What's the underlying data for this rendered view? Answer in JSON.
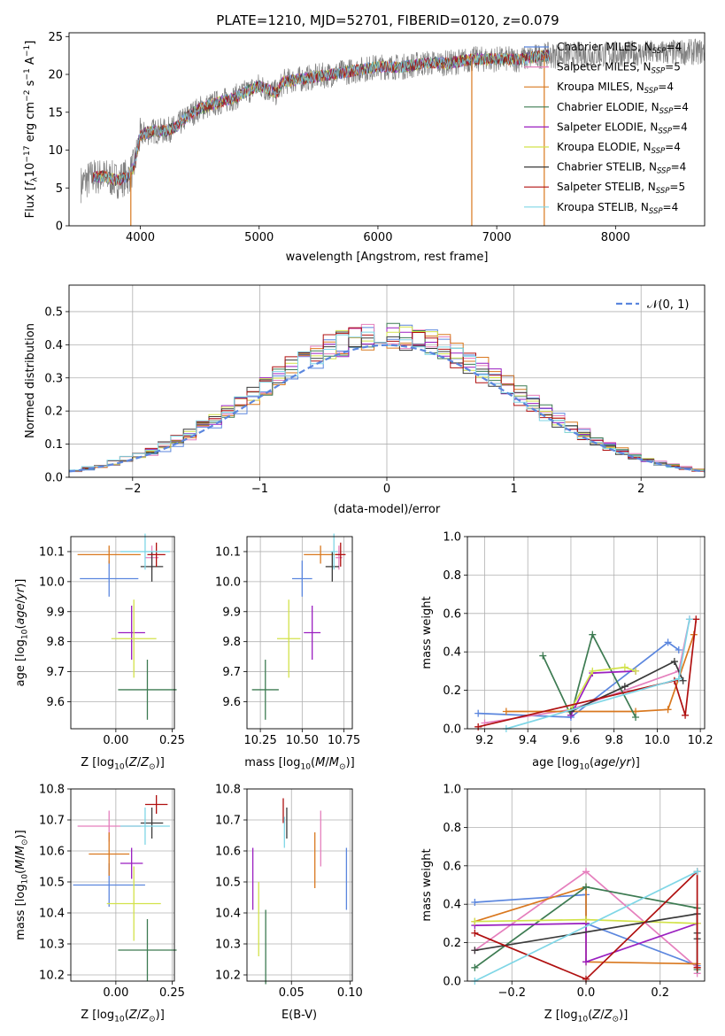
{
  "colors": {
    "chabrier_miles": "#5b86de",
    "salpeter_miles": "#e57fbd",
    "kroupa_miles": "#d9781f",
    "chabrier_elodie": "#3d7b52",
    "salpeter_elodie": "#9a1fc0",
    "kroupa_elodie": "#d2e24a",
    "chabrier_stelib": "#3a3a3a",
    "salpeter_stelib": "#b01010",
    "kroupa_stelib": "#7fd6e6",
    "gauss": "#5b86de",
    "grid": "#b0b0b0"
  },
  "chart_data": [
    {
      "id": "spectrum",
      "type": "line",
      "title": "PLATE=1210, MJD=52701, FIBERID=0120, z=0.079",
      "xlabel": "wavelength [Angstrom, rest frame]",
      "ylabel": "Flux [f_λ10^-17 erg cm^-2 s^-1 A^-1]",
      "xlim": [
        3400,
        8750
      ],
      "ylim": [
        0,
        25.5
      ],
      "xticks": [
        4000,
        5000,
        6000,
        7000,
        8000
      ],
      "yticks": [
        0,
        5,
        10,
        15,
        20,
        25
      ],
      "grid": false,
      "legend_position": "right",
      "legend": [
        {
          "name": "Chabrier MILES",
          "nssp": "4"
        },
        {
          "name": "Salpeter MILES",
          "nssp": "5"
        },
        {
          "name": "Kroupa MILES",
          "nssp": "4"
        },
        {
          "name": "Chabrier ELODIE",
          "nssp": "4"
        },
        {
          "name": "Salpeter ELODIE",
          "nssp": "4"
        },
        {
          "name": "Kroupa ELODIE",
          "nssp": "4"
        },
        {
          "name": "Chabrier STELIB",
          "nssp": "4"
        },
        {
          "name": "Salpeter STELIB",
          "nssp": "5"
        },
        {
          "name": "Kroupa STELIB",
          "nssp": "4"
        }
      ],
      "continuum": {
        "wavelength": [
          3500,
          3600,
          3700,
          3800,
          3900,
          3950,
          4000,
          4100,
          4200,
          4300,
          4400,
          4500,
          4600,
          4800,
          5000,
          5150,
          5200,
          5400,
          5600,
          5800,
          6000,
          6200,
          6400,
          6600,
          6800,
          7000,
          7200,
          7400,
          7500
        ],
        "flux": [
          5.5,
          6.5,
          6.5,
          6.0,
          6.5,
          8.0,
          12.0,
          12.5,
          12.5,
          13.0,
          14.5,
          15.5,
          16.0,
          17.0,
          18.5,
          17.5,
          19.0,
          19.5,
          20.0,
          20.5,
          21.0,
          21.0,
          21.5,
          21.5,
          22.0,
          22.0,
          22.0,
          22.5,
          22.5
        ]
      },
      "data_range": [
        3500,
        8750
      ],
      "model_range": [
        3600,
        7450
      ],
      "dropouts": [
        3920,
        6790,
        7400
      ]
    },
    {
      "id": "residuals",
      "type": "histogram",
      "xlabel": "(data-model)/error",
      "ylabel": "Normed distribution",
      "xlim": [
        -2.5,
        2.5
      ],
      "ylim": [
        0,
        0.58
      ],
      "xticks": [
        -2,
        -1,
        0,
        1,
        2
      ],
      "yticks": [
        0.0,
        0.1,
        0.2,
        0.3,
        0.4,
        0.5
      ],
      "grid": true,
      "bin_width": 0.1,
      "legend_label": "N(0,1)",
      "legend_position": "top-right"
    },
    {
      "id": "age-vs-Z",
      "type": "scatter",
      "xlabel": "Z [log10(Z/Z⊙)]",
      "ylabel": "age [log10(age/yr)]",
      "xlim": [
        -0.2,
        0.26
      ],
      "ylim": [
        9.51,
        10.15
      ],
      "xticks": [
        0.0,
        0.25
      ],
      "xtick_labels": [
        "0.00",
        "0.25"
      ],
      "yticks": [
        9.6,
        9.7,
        9.8,
        9.9,
        10.0,
        10.1
      ],
      "points": [
        {
          "series": "Chabrier MILES",
          "x": -0.03,
          "xerr": 0.13,
          "y": 10.01,
          "yerr": 0.06
        },
        {
          "series": "Salpeter MILES",
          "x": 0.16,
          "xerr": 0.03,
          "y": 10.08,
          "yerr": 0.04
        },
        {
          "series": "Kroupa MILES",
          "x": -0.03,
          "xerr": 0.14,
          "y": 10.09,
          "yerr": 0.03
        },
        {
          "series": "Chabrier ELODIE",
          "x": 0.14,
          "xerr": 0.13,
          "y": 9.64,
          "yerr": 0.1
        },
        {
          "series": "Salpeter ELODIE",
          "x": 0.07,
          "xerr": 0.06,
          "y": 9.83,
          "yerr": 0.09
        },
        {
          "series": "Kroupa ELODIE",
          "x": 0.08,
          "xerr": 0.1,
          "y": 9.81,
          "yerr": 0.13
        },
        {
          "series": "Chabrier STELIB",
          "x": 0.16,
          "xerr": 0.05,
          "y": 10.05,
          "yerr": 0.05
        },
        {
          "series": "Salpeter STELIB",
          "x": 0.18,
          "xerr": 0.04,
          "y": 10.09,
          "yerr": 0.04
        },
        {
          "series": "Kroupa STELIB",
          "x": 0.13,
          "xerr": 0.11,
          "y": 10.1,
          "yerr": 0.06
        }
      ]
    },
    {
      "id": "age-vs-mass",
      "type": "scatter",
      "xlabel": "mass [log10(M/M⊙)]",
      "ylabel": "",
      "xlim": [
        10.17,
        10.8
      ],
      "ylim": [
        9.51,
        10.15
      ],
      "xticks": [
        10.25,
        10.5,
        10.75
      ],
      "xtick_labels": [
        "10.25",
        "10.50",
        "10.75"
      ],
      "yticks": [
        9.6,
        9.7,
        9.8,
        9.9,
        10.0,
        10.1
      ],
      "points": [
        {
          "series": "Chabrier MILES",
          "x": 10.5,
          "xerr": 0.06,
          "y": 10.01,
          "yerr": 0.06
        },
        {
          "series": "Salpeter MILES",
          "x": 10.72,
          "xerr": 0.02,
          "y": 10.08,
          "yerr": 0.04
        },
        {
          "series": "Kroupa MILES",
          "x": 10.61,
          "xerr": 0.1,
          "y": 10.09,
          "yerr": 0.03
        },
        {
          "series": "Chabrier ELODIE",
          "x": 10.28,
          "xerr": 0.08,
          "y": 9.64,
          "yerr": 0.1
        },
        {
          "series": "Salpeter ELODIE",
          "x": 10.56,
          "xerr": 0.05,
          "y": 9.83,
          "yerr": 0.09
        },
        {
          "series": "Kroupa ELODIE",
          "x": 10.42,
          "xerr": 0.07,
          "y": 9.81,
          "yerr": 0.13
        },
        {
          "series": "Chabrier STELIB",
          "x": 10.68,
          "xerr": 0.04,
          "y": 10.05,
          "yerr": 0.05
        },
        {
          "series": "Salpeter STELIB",
          "x": 10.73,
          "xerr": 0.03,
          "y": 10.09,
          "yerr": 0.04
        },
        {
          "series": "Kroupa STELIB",
          "x": 10.69,
          "xerr": 0.02,
          "y": 10.1,
          "yerr": 0.06
        }
      ]
    },
    {
      "id": "weight-vs-age",
      "type": "line",
      "xlabel": "age [log10(age/yr)]",
      "ylabel": "mass weight",
      "xlim": [
        9.12,
        10.22
      ],
      "ylim": [
        0,
        1.0
      ],
      "xticks": [
        9.2,
        9.4,
        9.6,
        9.8,
        10.0,
        10.2
      ],
      "yticks": [
        0.0,
        0.2,
        0.4,
        0.6,
        0.8,
        1.0
      ],
      "grid": true,
      "series": [
        {
          "name": "Chabrier MILES",
          "x": [
            9.17,
            9.6,
            10.05,
            10.1
          ],
          "y": [
            0.08,
            0.06,
            0.45,
            0.41
          ]
        },
        {
          "name": "Salpeter MILES",
          "x": [
            9.2,
            9.6,
            10.1,
            10.15
          ],
          "y": [
            0.03,
            0.1,
            0.3,
            0.57
          ]
        },
        {
          "name": "Kroupa MILES",
          "x": [
            9.3,
            9.9,
            10.05,
            10.17
          ],
          "y": [
            0.09,
            0.09,
            0.1,
            0.49
          ]
        },
        {
          "name": "Chabrier ELODIE",
          "x": [
            9.47,
            9.6,
            9.7,
            9.9
          ],
          "y": [
            0.38,
            0.07,
            0.49,
            0.06
          ]
        },
        {
          "name": "Salpeter ELODIE",
          "x": [
            9.6,
            9.7,
            9.9
          ],
          "y": [
            0.07,
            0.29,
            0.3
          ]
        },
        {
          "name": "Kroupa ELODIE",
          "x": [
            9.6,
            9.7,
            9.85,
            9.9
          ],
          "y": [
            0.1,
            0.3,
            0.32,
            0.3
          ]
        },
        {
          "name": "Chabrier STELIB",
          "x": [
            9.6,
            9.85,
            10.08,
            10.12
          ],
          "y": [
            0.09,
            0.22,
            0.35,
            0.25
          ]
        },
        {
          "name": "Salpeter STELIB",
          "x": [
            9.17,
            10.08,
            10.13,
            10.18
          ],
          "y": [
            0.01,
            0.25,
            0.07,
            0.57
          ]
        },
        {
          "name": "Kroupa STELIB",
          "x": [
            9.3,
            10.1,
            10.15
          ],
          "y": [
            0.0,
            0.26,
            0.57
          ]
        }
      ]
    },
    {
      "id": "mass-vs-Z",
      "type": "scatter",
      "xlabel": "Z [log10(Z/Z⊙)]",
      "ylabel": "mass [log10(M/M⊙)]",
      "xlim": [
        -0.2,
        0.26
      ],
      "ylim": [
        10.18,
        10.8
      ],
      "xticks": [
        0.0,
        0.25
      ],
      "xtick_labels": [
        "0.00",
        "0.25"
      ],
      "yticks": [
        10.2,
        10.3,
        10.4,
        10.5,
        10.6,
        10.7,
        10.8
      ],
      "points": [
        {
          "series": "Chabrier MILES",
          "x": -0.03,
          "xerr": 0.16,
          "y": 10.49,
          "yerr": 0.07
        },
        {
          "series": "Salpeter MILES",
          "x": -0.03,
          "xerr": 0.14,
          "y": 10.68,
          "yerr": 0.05
        },
        {
          "series": "Kroupa MILES",
          "x": -0.03,
          "xerr": 0.09,
          "y": 10.59,
          "yerr": 0.07
        },
        {
          "series": "Chabrier ELODIE",
          "x": 0.14,
          "xerr": 0.13,
          "y": 10.28,
          "yerr": 0.1
        },
        {
          "series": "Salpeter ELODIE",
          "x": 0.07,
          "xerr": 0.05,
          "y": 10.56,
          "yerr": 0.05
        },
        {
          "series": "Kroupa ELODIE",
          "x": 0.08,
          "xerr": 0.12,
          "y": 10.43,
          "yerr": 0.12
        },
        {
          "series": "Chabrier STELIB",
          "x": 0.16,
          "xerr": 0.05,
          "y": 10.69,
          "yerr": 0.05
        },
        {
          "series": "Salpeter STELIB",
          "x": 0.18,
          "xerr": 0.05,
          "y": 10.75,
          "yerr": 0.03
        },
        {
          "series": "Kroupa STELIB",
          "x": 0.13,
          "xerr": 0.11,
          "y": 10.68,
          "yerr": 0.06
        }
      ]
    },
    {
      "id": "mass-vs-ebv",
      "type": "scatter",
      "xlabel": "E(B-V)",
      "ylabel": "",
      "xlim": [
        0.012,
        0.102
      ],
      "ylim": [
        10.18,
        10.8
      ],
      "xticks": [
        0.05,
        0.1
      ],
      "xtick_labels": [
        "0.05",
        "0.10"
      ],
      "yticks": [
        10.2,
        10.3,
        10.4,
        10.5,
        10.6,
        10.7,
        10.8
      ],
      "points": [
        {
          "series": "Chabrier MILES",
          "x": 0.097,
          "y": 10.51,
          "yerr": 0.1
        },
        {
          "series": "Salpeter MILES",
          "x": 0.075,
          "y": 10.64,
          "yerr": 0.09
        },
        {
          "series": "Kroupa MILES",
          "x": 0.07,
          "y": 10.57,
          "yerr": 0.09
        },
        {
          "series": "Chabrier ELODIE",
          "x": 0.028,
          "y": 10.29,
          "yerr": 0.12
        },
        {
          "series": "Salpeter ELODIE",
          "x": 0.017,
          "y": 10.51,
          "yerr": 0.1
        },
        {
          "series": "Kroupa ELODIE",
          "x": 0.022,
          "y": 10.38,
          "yerr": 0.12
        },
        {
          "series": "Chabrier STELIB",
          "x": 0.046,
          "y": 10.69,
          "yerr": 0.05
        },
        {
          "series": "Salpeter STELIB",
          "x": 0.043,
          "y": 10.73,
          "yerr": 0.04
        },
        {
          "series": "Kroupa STELIB",
          "x": 0.044,
          "y": 10.66,
          "yerr": 0.05
        }
      ]
    },
    {
      "id": "weight-vs-Z",
      "type": "line",
      "xlabel": "Z [log10(Z/Z⊙)]",
      "ylabel": "mass weight",
      "xlim": [
        -0.32,
        0.32
      ],
      "ylim": [
        0,
        1.0
      ],
      "xticks": [
        -0.2,
        0.0,
        0.2
      ],
      "xtick_labels": [
        "−0.2",
        "0.0",
        "0.2"
      ],
      "yticks": [
        0.0,
        0.2,
        0.4,
        0.6,
        0.8,
        1.0
      ],
      "grid": true,
      "series": [
        {
          "name": "Chabrier MILES",
          "x": [
            -0.3,
            0.0,
            0.0,
            0.3
          ],
          "y": [
            0.41,
            0.45,
            0.3,
            0.08
          ]
        },
        {
          "name": "Salpeter MILES",
          "x": [
            -0.3,
            0.0,
            0.3,
            0.3
          ],
          "y": [
            0.16,
            0.57,
            0.07,
            0.04
          ]
        },
        {
          "name": "Kroupa MILES",
          "x": [
            -0.3,
            0.0,
            0.0,
            0.3,
            0.3
          ],
          "y": [
            0.31,
            0.49,
            0.1,
            0.09,
            0.07
          ]
        },
        {
          "name": "Chabrier ELODIE",
          "x": [
            -0.3,
            0.0,
            0.3,
            0.3
          ],
          "y": [
            0.07,
            0.49,
            0.38,
            0.06
          ]
        },
        {
          "name": "Salpeter ELODIE",
          "x": [
            -0.3,
            0.0,
            0.0,
            0.3,
            0.3
          ],
          "y": [
            0.29,
            0.3,
            0.1,
            0.3,
            0.3
          ]
        },
        {
          "name": "Kroupa ELODIE",
          "x": [
            -0.3,
            0.0,
            0.3,
            0.3
          ],
          "y": [
            0.31,
            0.32,
            0.3,
            0.3
          ]
        },
        {
          "name": "Chabrier STELIB",
          "x": [
            -0.3,
            0.3,
            0.3,
            0.3
          ],
          "y": [
            0.16,
            0.35,
            0.25,
            0.22
          ]
        },
        {
          "name": "Salpeter STELIB",
          "x": [
            -0.3,
            0.0,
            0.3,
            0.3
          ],
          "y": [
            0.25,
            0.01,
            0.57,
            0.07
          ]
        },
        {
          "name": "Kroupa STELIB",
          "x": [
            -0.3,
            0.3
          ],
          "y": [
            0.0,
            0.57
          ]
        }
      ]
    }
  ]
}
